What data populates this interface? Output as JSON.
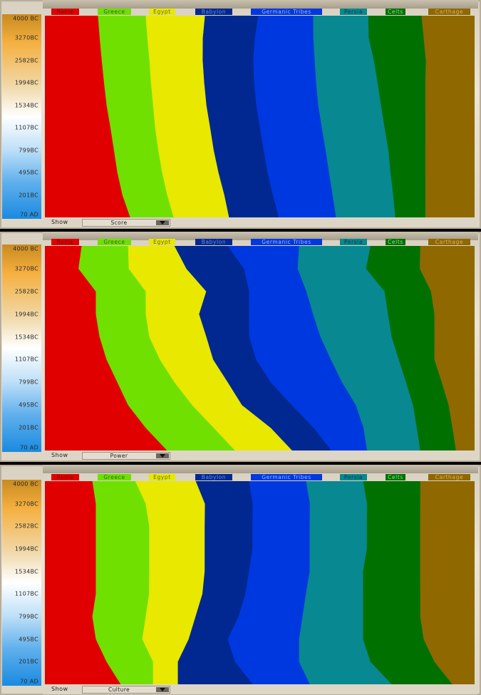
{
  "civilizations": [
    {
      "name": "Rome",
      "color": "#e00000",
      "text_color": "#7a0000"
    },
    {
      "name": "Greece",
      "color": "#70e000",
      "text_color": "#2e6a00"
    },
    {
      "name": "Egypt",
      "color": "#e8e800",
      "text_color": "#6a6a00"
    },
    {
      "name": "Babylon",
      "color": "#002890",
      "text_color": "#6a8ae0"
    },
    {
      "name": "Germanic Tribes",
      "color": "#0038e0",
      "text_color": "#9ab8ff"
    },
    {
      "name": "Persia",
      "color": "#088890",
      "text_color": "#023c40"
    },
    {
      "name": "Celts",
      "color": "#007000",
      "text_color": "#8ae08a"
    },
    {
      "name": "Carthage",
      "color": "#906800",
      "text_color": "#d8b060"
    }
  ],
  "show_label": "Show",
  "chart_data": [
    {
      "type": "area",
      "stacked": "100%",
      "selected_view": "Score",
      "time_labels": [
        "4000 BC",
        "3270BC",
        "2582BC",
        "1994BC",
        "1534BC",
        "1107BC",
        "799BC",
        "495BC",
        "201BC",
        "70 AD"
      ],
      "series": [
        {
          "name": "Rome",
          "values": [
            12.4,
            12.8,
            13.3,
            13.8,
            14.4,
            15.3,
            16.1,
            16.9,
            18.1,
            19.9
          ]
        },
        {
          "name": "Greece",
          "values": [
            11.1,
            11.1,
            11.1,
            10.9,
            10.8,
            10.4,
            10.3,
            10.4,
            10.4,
            10.1
          ]
        },
        {
          "name": "Egypt",
          "values": [
            13.8,
            12.9,
            12.4,
            12.4,
            12.4,
            12.8,
            12.9,
            13.1,
            13.3,
            12.9
          ]
        },
        {
          "name": "Babylon",
          "values": [
            12.4,
            12.1,
            11.8,
            11.6,
            11.6,
            11.6,
            11.6,
            11.4,
            11.3,
            11.6
          ]
        },
        {
          "name": "Germanic Tribes",
          "values": [
            12.8,
            13.6,
            14.3,
            14.4,
            14.4,
            14.4,
            14.4,
            14.3,
            13.9,
            13.3
          ]
        },
        {
          "name": "Persia",
          "values": [
            12.8,
            12.9,
            13.8,
            14.3,
            14.6,
            14.6,
            14.6,
            14.3,
            14.1,
            13.8
          ]
        },
        {
          "name": "Celts",
          "values": [
            12.4,
            12.8,
            12.1,
            11.1,
            10.3,
            9.5,
            8.6,
            8.1,
            7.5,
            7.0
          ]
        },
        {
          "name": "Carthage",
          "values": [
            12.3,
            11.8,
            11.3,
            11.4,
            11.4,
            11.4,
            11.4,
            11.4,
            11.4,
            11.4
          ]
        }
      ]
    },
    {
      "type": "area",
      "stacked": "100%",
      "selected_view": "Power",
      "time_labels": [
        "4000 BC",
        "3270BC",
        "2582BC",
        "1994BC",
        "1534BC",
        "1107BC",
        "799BC",
        "495BC",
        "201BC",
        "70 AD"
      ],
      "series": [
        {
          "name": "Rome",
          "values": [
            8.6,
            7.8,
            11.9,
            11.9,
            12.8,
            14.4,
            16.9,
            19.4,
            23.5,
            28.5
          ]
        },
        {
          "name": "Greece",
          "values": [
            10.8,
            11.6,
            11.6,
            11.6,
            11.6,
            12.4,
            13.3,
            14.9,
            15.8,
            15.8
          ]
        },
        {
          "name": "Egypt",
          "values": [
            10.8,
            13.3,
            14.1,
            12.4,
            13.3,
            12.4,
            12.4,
            11.6,
            13.3,
            13.3
          ]
        },
        {
          "name": "Babylon",
          "values": [
            12.4,
            13.3,
            10.0,
            11.6,
            10.0,
            10.0,
            10.0,
            11.6,
            10.0,
            9.1
          ]
        },
        {
          "name": "Germanic Tribes",
          "values": [
            16.6,
            12.4,
            13.3,
            14.9,
            16.6,
            17.4,
            16.6,
            14.9,
            11.6,
            8.3
          ]
        },
        {
          "name": "Persia",
          "values": [
            16.6,
            15.8,
            18.2,
            17.4,
            16.6,
            15.8,
            14.9,
            13.3,
            12.4,
            12.4
          ]
        },
        {
          "name": "Celts",
          "values": [
            11.6,
            12.4,
            10.8,
            10.8,
            10.0,
            8.3,
            8.3,
            8.3,
            8.3,
            8.3
          ]
        },
        {
          "name": "Carthage",
          "values": [
            12.6,
            12.6,
            10.1,
            9.3,
            9.3,
            9.3,
            7.6,
            6.0,
            5.1,
            4.3
          ]
        }
      ]
    },
    {
      "type": "area",
      "stacked": "100%",
      "selected_view": "Culture",
      "time_labels": [
        "4000 BC",
        "3270BC",
        "2582BC",
        "1994BC",
        "1534BC",
        "1107BC",
        "799BC",
        "495BC",
        "201BC",
        "70 AD"
      ],
      "series": [
        {
          "name": "Rome",
          "values": [
            11.1,
            11.9,
            11.9,
            11.9,
            11.9,
            11.9,
            11.1,
            11.9,
            14.4,
            17.7
          ]
        },
        {
          "name": "Greece",
          "values": [
            10.0,
            11.6,
            12.4,
            12.4,
            12.4,
            12.4,
            12.4,
            10.8,
            10.8,
            7.5
          ]
        },
        {
          "name": "Egypt",
          "values": [
            14.1,
            13.8,
            12.9,
            12.9,
            12.9,
            12.4,
            11.6,
            10.8,
            5.8,
            5.8
          ]
        },
        {
          "name": "Babylon",
          "values": [
            12.4,
            11.1,
            11.1,
            11.1,
            10.3,
            10.0,
            10.0,
            9.1,
            13.3,
            17.4
          ]
        },
        {
          "name": "Germanic Tribes",
          "values": [
            13.3,
            13.3,
            13.3,
            13.3,
            14.1,
            14.1,
            14.9,
            16.6,
            14.9,
            13.3
          ]
        },
        {
          "name": "Persia",
          "values": [
            13.3,
            13.3,
            13.3,
            13.3,
            12.4,
            13.3,
            14.1,
            14.9,
            16.6,
            19.1
          ]
        },
        {
          "name": "Celts",
          "values": [
            13.3,
            12.4,
            12.4,
            12.4,
            13.3,
            13.3,
            13.3,
            14.1,
            14.9,
            14.1
          ]
        },
        {
          "name": "Carthage",
          "values": [
            12.6,
            12.6,
            12.6,
            12.6,
            12.6,
            12.6,
            12.6,
            11.8,
            9.3,
            5.1
          ]
        }
      ]
    }
  ]
}
